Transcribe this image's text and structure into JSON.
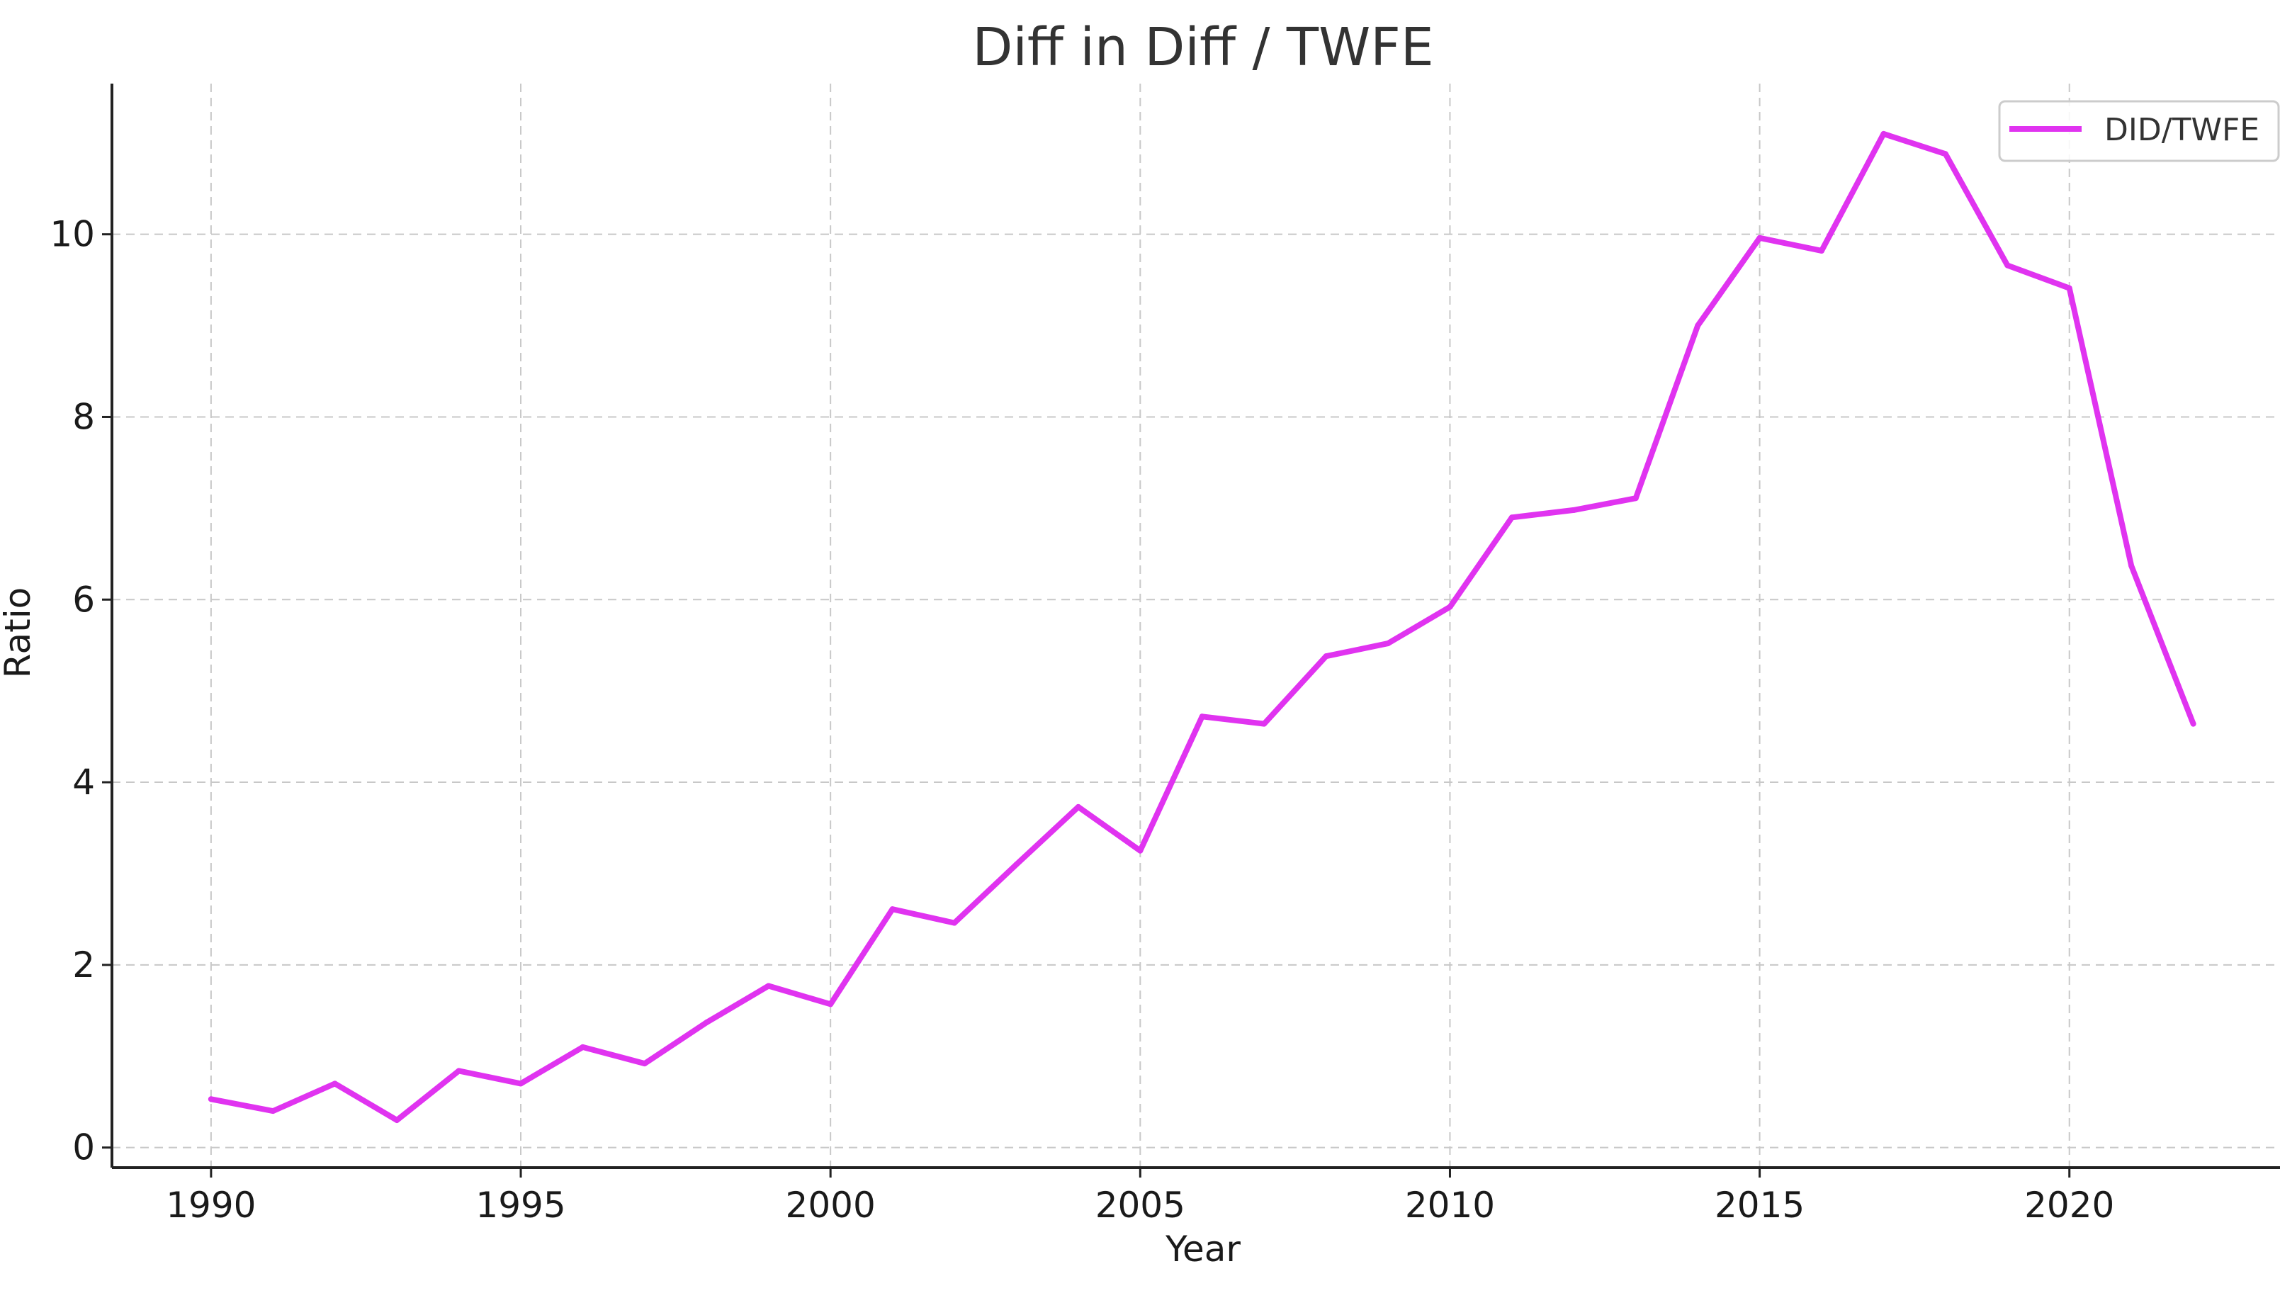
{
  "chart_data": {
    "type": "line",
    "title": "Diff in Diff / TWFE",
    "xlabel": "Year",
    "ylabel": "Ratio",
    "xlim": [
      1988.4,
      2023.4
    ],
    "ylim": [
      -0.22,
      11.65
    ],
    "xticks": [
      1990,
      1995,
      2000,
      2005,
      2010,
      2015,
      2020
    ],
    "yticks": [
      0,
      2,
      4,
      6,
      8,
      10
    ],
    "grid": true,
    "legend": "top-right",
    "x": [
      1990,
      1991,
      1992,
      1993,
      1994,
      1995,
      1996,
      1997,
      1998,
      1999,
      2000,
      2001,
      2002,
      2003,
      2004,
      2005,
      2006,
      2007,
      2008,
      2009,
      2010,
      2011,
      2012,
      2013,
      2014,
      2015,
      2016,
      2017,
      2018,
      2019,
      2020,
      2021,
      2022
    ],
    "series": [
      {
        "name": "DID/TWFE",
        "color": "#e033f0",
        "values": [
          0.53,
          0.4,
          0.7,
          0.3,
          0.84,
          0.7,
          1.1,
          0.92,
          1.37,
          1.77,
          1.57,
          2.61,
          2.46,
          3.1,
          3.73,
          3.25,
          4.72,
          4.64,
          5.38,
          5.52,
          5.92,
          6.9,
          6.98,
          7.11,
          9.0,
          9.96,
          9.82,
          11.1,
          10.88,
          9.66,
          9.41,
          6.37,
          4.64
        ]
      }
    ]
  }
}
